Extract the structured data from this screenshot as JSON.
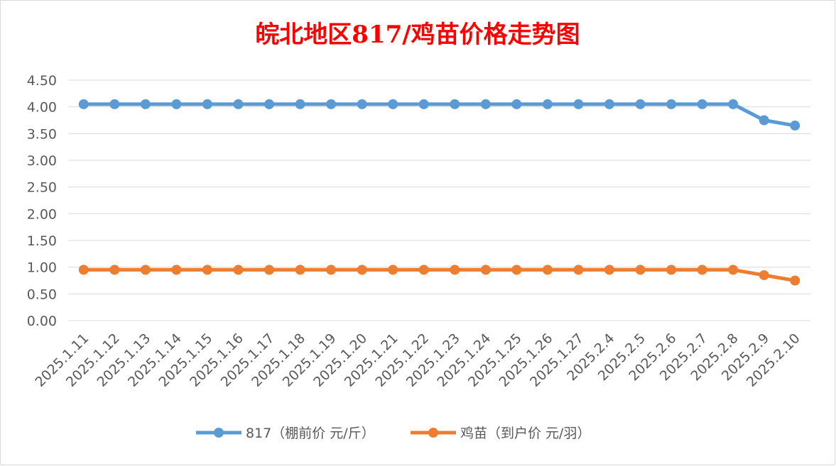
{
  "chart_data": {
    "type": "line",
    "title": "皖北地区817/鸡苗价格走势图",
    "xlabel": "",
    "ylabel": "",
    "ylim": [
      0,
      4.5
    ],
    "y_ticks": [
      "0.00",
      "0.50",
      "1.00",
      "1.50",
      "2.00",
      "2.50",
      "3.00",
      "3.50",
      "4.00",
      "4.50"
    ],
    "grid": true,
    "legend_position": "bottom",
    "categories": [
      "2025.1.11",
      "2025.1.12",
      "2025.1.13",
      "2025.1.14",
      "2025.1.15",
      "2025.1.16",
      "2025.1.17",
      "2025.1.18",
      "2025.1.19",
      "2025.1.20",
      "2025.1.21",
      "2025.1.22",
      "2025.1.23",
      "2025.1.24",
      "2025.1.25",
      "2025.1.26",
      "2025.1.27",
      "2025.2.4",
      "2025.2.5",
      "2025.2.6",
      "2025.2.7",
      "2025.2.8",
      "2025.2.9",
      "2025.2.10"
    ],
    "series": [
      {
        "name": "817（棚前价 元/斤）",
        "color": "#5b9bd5",
        "values": [
          4.05,
          4.05,
          4.05,
          4.05,
          4.05,
          4.05,
          4.05,
          4.05,
          4.05,
          4.05,
          4.05,
          4.05,
          4.05,
          4.05,
          4.05,
          4.05,
          4.05,
          4.05,
          4.05,
          4.05,
          4.05,
          4.05,
          3.75,
          3.65
        ]
      },
      {
        "name": "鸡苗（到户价 元/羽）",
        "color": "#ed7d31",
        "values": [
          0.95,
          0.95,
          0.95,
          0.95,
          0.95,
          0.95,
          0.95,
          0.95,
          0.95,
          0.95,
          0.95,
          0.95,
          0.95,
          0.95,
          0.95,
          0.95,
          0.95,
          0.95,
          0.95,
          0.95,
          0.95,
          0.95,
          0.85,
          0.75
        ]
      }
    ]
  }
}
